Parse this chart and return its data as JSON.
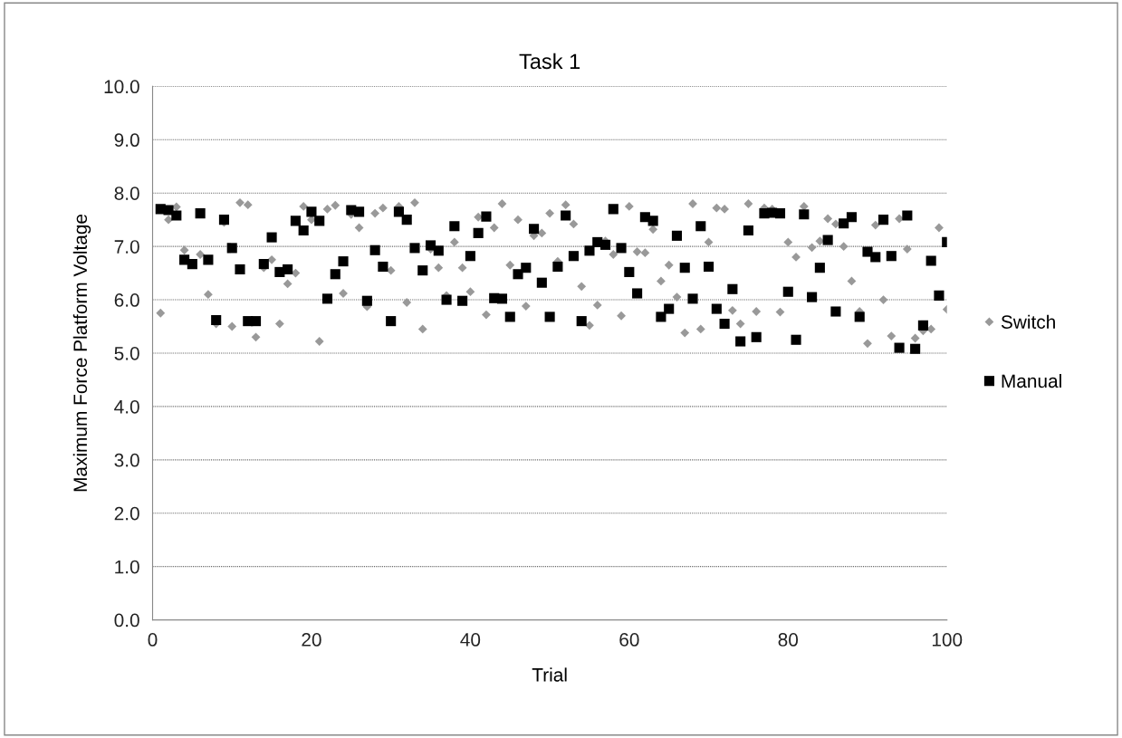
{
  "chart_data": {
    "type": "scatter",
    "title": "Task 1",
    "xlabel": "Trial",
    "ylabel": "Maximum Force Platform Voltage",
    "xlim": [
      0,
      100
    ],
    "xticks": [
      0,
      20,
      40,
      60,
      80,
      100
    ],
    "ylim": [
      0,
      10
    ],
    "yticks": [
      {
        "value": 0,
        "label": "0.0"
      },
      {
        "value": 1,
        "label": "1.0"
      },
      {
        "value": 2,
        "label": "2.0"
      },
      {
        "value": 3,
        "label": "3.0"
      },
      {
        "value": 4,
        "label": "4.0"
      },
      {
        "value": 5,
        "label": "5.0"
      },
      {
        "value": 6,
        "label": "6.0"
      },
      {
        "value": 7,
        "label": "7.0"
      },
      {
        "value": 8,
        "label": "8.0"
      },
      {
        "value": 9,
        "label": "9.0"
      },
      {
        "value": 10,
        "label": "10.0"
      }
    ],
    "grid": "y",
    "legend": "right",
    "x": [
      1,
      2,
      3,
      4,
      5,
      6,
      7,
      8,
      9,
      10,
      11,
      12,
      13,
      14,
      15,
      16,
      17,
      18,
      19,
      20,
      21,
      22,
      23,
      24,
      25,
      26,
      27,
      28,
      29,
      30,
      31,
      32,
      33,
      34,
      35,
      36,
      37,
      38,
      39,
      40,
      41,
      42,
      43,
      44,
      45,
      46,
      47,
      48,
      49,
      50,
      51,
      52,
      53,
      54,
      55,
      56,
      57,
      58,
      59,
      60,
      61,
      62,
      63,
      64,
      65,
      66,
      67,
      68,
      69,
      70,
      71,
      72,
      73,
      74,
      75,
      76,
      77,
      78,
      79,
      80,
      81,
      82,
      83,
      84,
      85,
      86,
      87,
      88,
      89,
      90,
      91,
      92,
      93,
      94,
      95,
      96,
      97,
      98,
      99,
      100
    ],
    "series": [
      {
        "name": "Switch",
        "color": "#999999",
        "marker": "diamond",
        "values": [
          5.75,
          7.5,
          7.74,
          6.93,
          null,
          6.85,
          6.1,
          5.55,
          7.45,
          5.5,
          7.82,
          7.78,
          5.3,
          6.6,
          6.75,
          5.55,
          6.3,
          6.5,
          7.75,
          7.5,
          5.22,
          7.7,
          7.77,
          6.12,
          7.6,
          7.35,
          5.87,
          7.62,
          7.72,
          6.55,
          7.75,
          5.95,
          7.82,
          5.45,
          6.95,
          6.6,
          6.08,
          7.08,
          6.6,
          6.15,
          7.55,
          5.72,
          7.35,
          7.8,
          6.65,
          7.5,
          5.88,
          7.2,
          7.25,
          7.62,
          6.72,
          7.78,
          7.42,
          6.25,
          5.52,
          5.9,
          7.1,
          6.85,
          5.7,
          7.75,
          6.9,
          6.88,
          7.32,
          6.35,
          6.65,
          6.05,
          5.38,
          7.8,
          5.45,
          7.08,
          7.72,
          7.7,
          5.8,
          5.55,
          7.8,
          5.78,
          7.72,
          7.7,
          5.77,
          7.08,
          6.8,
          7.75,
          6.98,
          7.1,
          7.52,
          7.42,
          7.0,
          6.35,
          5.78,
          5.18,
          7.4,
          6.0,
          5.32,
          7.52,
          6.95,
          5.28,
          5.42,
          5.45,
          7.35,
          5.82
        ]
      },
      {
        "name": "Manual",
        "color": "#000000",
        "marker": "square",
        "values": [
          7.7,
          7.68,
          7.58,
          6.75,
          6.67,
          7.62,
          6.75,
          5.62,
          7.5,
          6.97,
          6.57,
          5.6,
          5.6,
          6.67,
          7.17,
          6.52,
          6.57,
          7.48,
          7.3,
          7.65,
          7.48,
          6.02,
          6.48,
          6.72,
          7.68,
          7.65,
          5.98,
          6.93,
          6.62,
          5.6,
          7.65,
          7.5,
          6.97,
          6.55,
          7.02,
          6.92,
          6.0,
          7.38,
          5.98,
          6.82,
          7.25,
          7.56,
          6.03,
          6.02,
          5.68,
          6.48,
          6.6,
          7.33,
          6.32,
          5.68,
          6.62,
          7.58,
          6.82,
          5.6,
          6.92,
          7.08,
          7.03,
          7.7,
          6.97,
          6.52,
          6.12,
          7.55,
          7.48,
          5.68,
          5.83,
          7.2,
          6.6,
          6.02,
          7.38,
          6.62,
          5.83,
          5.55,
          6.2,
          5.22,
          7.3,
          5.3,
          7.62,
          7.63,
          7.62,
          6.15,
          5.25,
          7.6,
          6.05,
          6.6,
          7.12,
          5.78,
          7.43,
          7.55,
          5.68,
          6.9,
          6.8,
          7.5,
          6.82,
          5.1,
          7.58,
          5.08,
          5.52,
          6.73,
          6.08,
          7.08
        ]
      }
    ]
  }
}
